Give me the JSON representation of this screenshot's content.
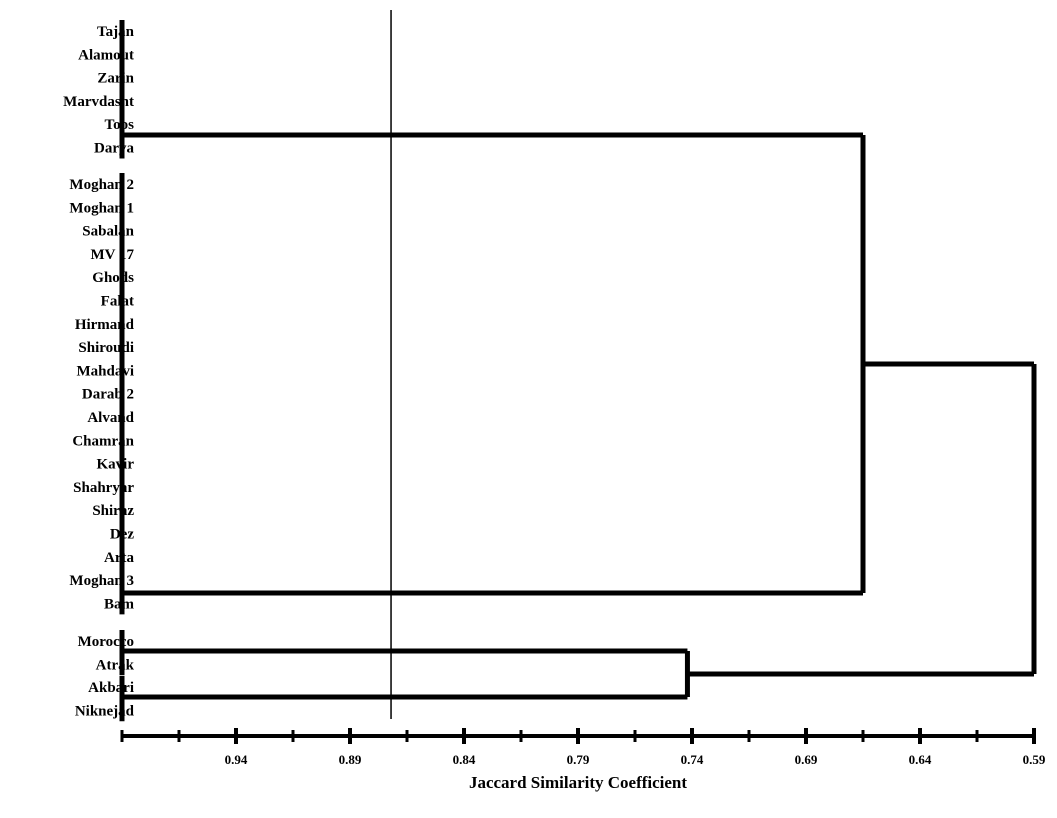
{
  "chart_data": {
    "type": "dendrogram",
    "orientation": "horizontal",
    "xlabel": "Jaccard Similarity Coefficient",
    "x_reversed": true,
    "xlim": [
      0.99,
      0.59
    ],
    "xticks": [
      0.94,
      0.89,
      0.84,
      0.79,
      0.74,
      0.69,
      0.64,
      0.59
    ],
    "xtick_labels": [
      "0.94",
      "0.89",
      "0.84",
      "0.79",
      "0.74",
      "0.69",
      "0.64",
      "0.59"
    ],
    "cutoff_line": 0.872,
    "leaves": [
      "Tajan",
      "Alamout",
      "Zarin",
      "Marvdasht",
      "Toos",
      "Darya",
      "Moghan 2",
      "Moghan 1",
      "Sabalan",
      "MV 17",
      "Ghods",
      "Falat",
      "Hirmand",
      "Shiroudi",
      "Mahdavi",
      "Darab 2",
      "Alvand",
      "Chamran",
      "Kavir",
      "Shahryar",
      "Shiraz",
      "Dez",
      "Arta",
      "Moghan 3",
      "Bam",
      "Morocco",
      "Atrak",
      "Akbari",
      "Niknejad"
    ],
    "clusters": [
      {
        "name": "A",
        "members": [
          0,
          1,
          2,
          3,
          4,
          5
        ],
        "height": 1.0
      },
      {
        "name": "B",
        "members": [
          6,
          7,
          8,
          9,
          10,
          11,
          12,
          13,
          14,
          15,
          16,
          17,
          18,
          19,
          20,
          21,
          22,
          23,
          24
        ],
        "height": 1.0
      },
      {
        "name": "C",
        "members": [
          25,
          26
        ],
        "height": 1.0
      },
      {
        "name": "D",
        "members": [
          27,
          28
        ],
        "height": 1.0
      }
    ],
    "merges": [
      {
        "left": "A",
        "right": "B",
        "height": 0.665,
        "name": "AB"
      },
      {
        "left": "C",
        "right": "D",
        "height": 0.742,
        "name": "CD"
      },
      {
        "left": "AB",
        "right": "CD",
        "height": 0.59,
        "name": "root"
      }
    ]
  }
}
